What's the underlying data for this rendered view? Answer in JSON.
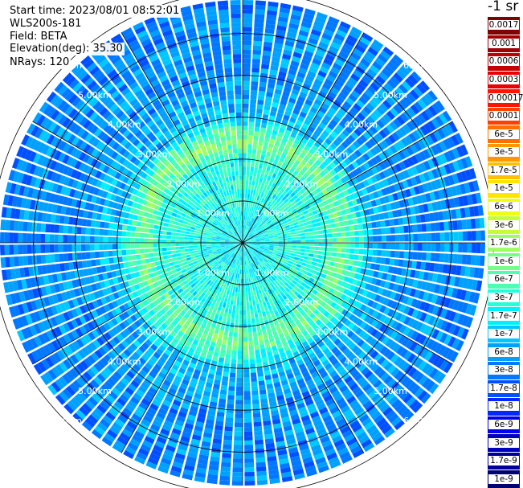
{
  "info": {
    "start_time": "Start time: 2023/08/01 08:52:01",
    "device": "WLS200s-181",
    "field": "Field: BETA",
    "elevation": "Elevation(deg): 35.30",
    "nrays": "NRays: 120"
  },
  "colorbar": {
    "unit": "-1 sr",
    "items": [
      {
        "label": "0.0017",
        "color": "#800000"
      },
      {
        "label": "0.001",
        "color": "#a00000"
      },
      {
        "label": "0.0006",
        "color": "#c20000"
      },
      {
        "label": "0.0003",
        "color": "#e80000"
      },
      {
        "label": "0.00017",
        "color": "#ff1400"
      },
      {
        "label": "0.0001",
        "color": "#ff4000"
      },
      {
        "label": "6e-5",
        "color": "#ff7000"
      },
      {
        "label": "3e-5",
        "color": "#ff9800"
      },
      {
        "label": "1.7e-5",
        "color": "#ffc000"
      },
      {
        "label": "1e-5",
        "color": "#ffe600"
      },
      {
        "label": "6e-6",
        "color": "#eeff10"
      },
      {
        "label": "3e-6",
        "color": "#c4ff3a"
      },
      {
        "label": "1.7e-6",
        "color": "#9cff62"
      },
      {
        "label": "1e-6",
        "color": "#74ff8a"
      },
      {
        "label": "6e-7",
        "color": "#4cffb2"
      },
      {
        "label": "3e-7",
        "color": "#24ffda"
      },
      {
        "label": "1.7e-7",
        "color": "#00f0ff"
      },
      {
        "label": "1e-7",
        "color": "#00c8ff"
      },
      {
        "label": "6e-8",
        "color": "#00a0ff"
      },
      {
        "label": "3e-8",
        "color": "#0078ff"
      },
      {
        "label": "1.7e-8",
        "color": "#0050ff"
      },
      {
        "label": "1e-8",
        "color": "#0028ff"
      },
      {
        "label": "6e-9",
        "color": "#0000f0"
      },
      {
        "label": "3e-9",
        "color": "#0000c0"
      },
      {
        "label": "1.7e-9",
        "color": "#000098"
      },
      {
        "label": "1e-9",
        "color": "#000070"
      }
    ]
  },
  "chart_data": {
    "type": "heatmap",
    "projection": "polar PPI scan",
    "field": "BETA",
    "elevation_deg": 35.3,
    "n_rays": 120,
    "scale": "log",
    "range_ticks_km": [
      1,
      2,
      3,
      4,
      5,
      6
    ],
    "range_labels": [
      "1.00km",
      "2.00km",
      "3.00km",
      "4.00km",
      "5.00km",
      "6.00km"
    ],
    "azimuth_spokes_deg": [
      0,
      30,
      60,
      90,
      120,
      150,
      180,
      210,
      240,
      270,
      300,
      330
    ],
    "approx_values_by_range": [
      {
        "range_km": 0.5,
        "beta": 2e-07
      },
      {
        "range_km": 1.0,
        "beta": 3e-07
      },
      {
        "range_km": 2.0,
        "beta": 3e-07
      },
      {
        "range_km": 2.5,
        "beta": 2e-06
      },
      {
        "range_km": 3.0,
        "beta": 1e-07
      },
      {
        "range_km": 4.0,
        "beta": 5e-08
      },
      {
        "range_km": 5.0,
        "beta": 5e-08
      },
      {
        "range_km": 5.5,
        "beta": 4e-08
      }
    ]
  }
}
